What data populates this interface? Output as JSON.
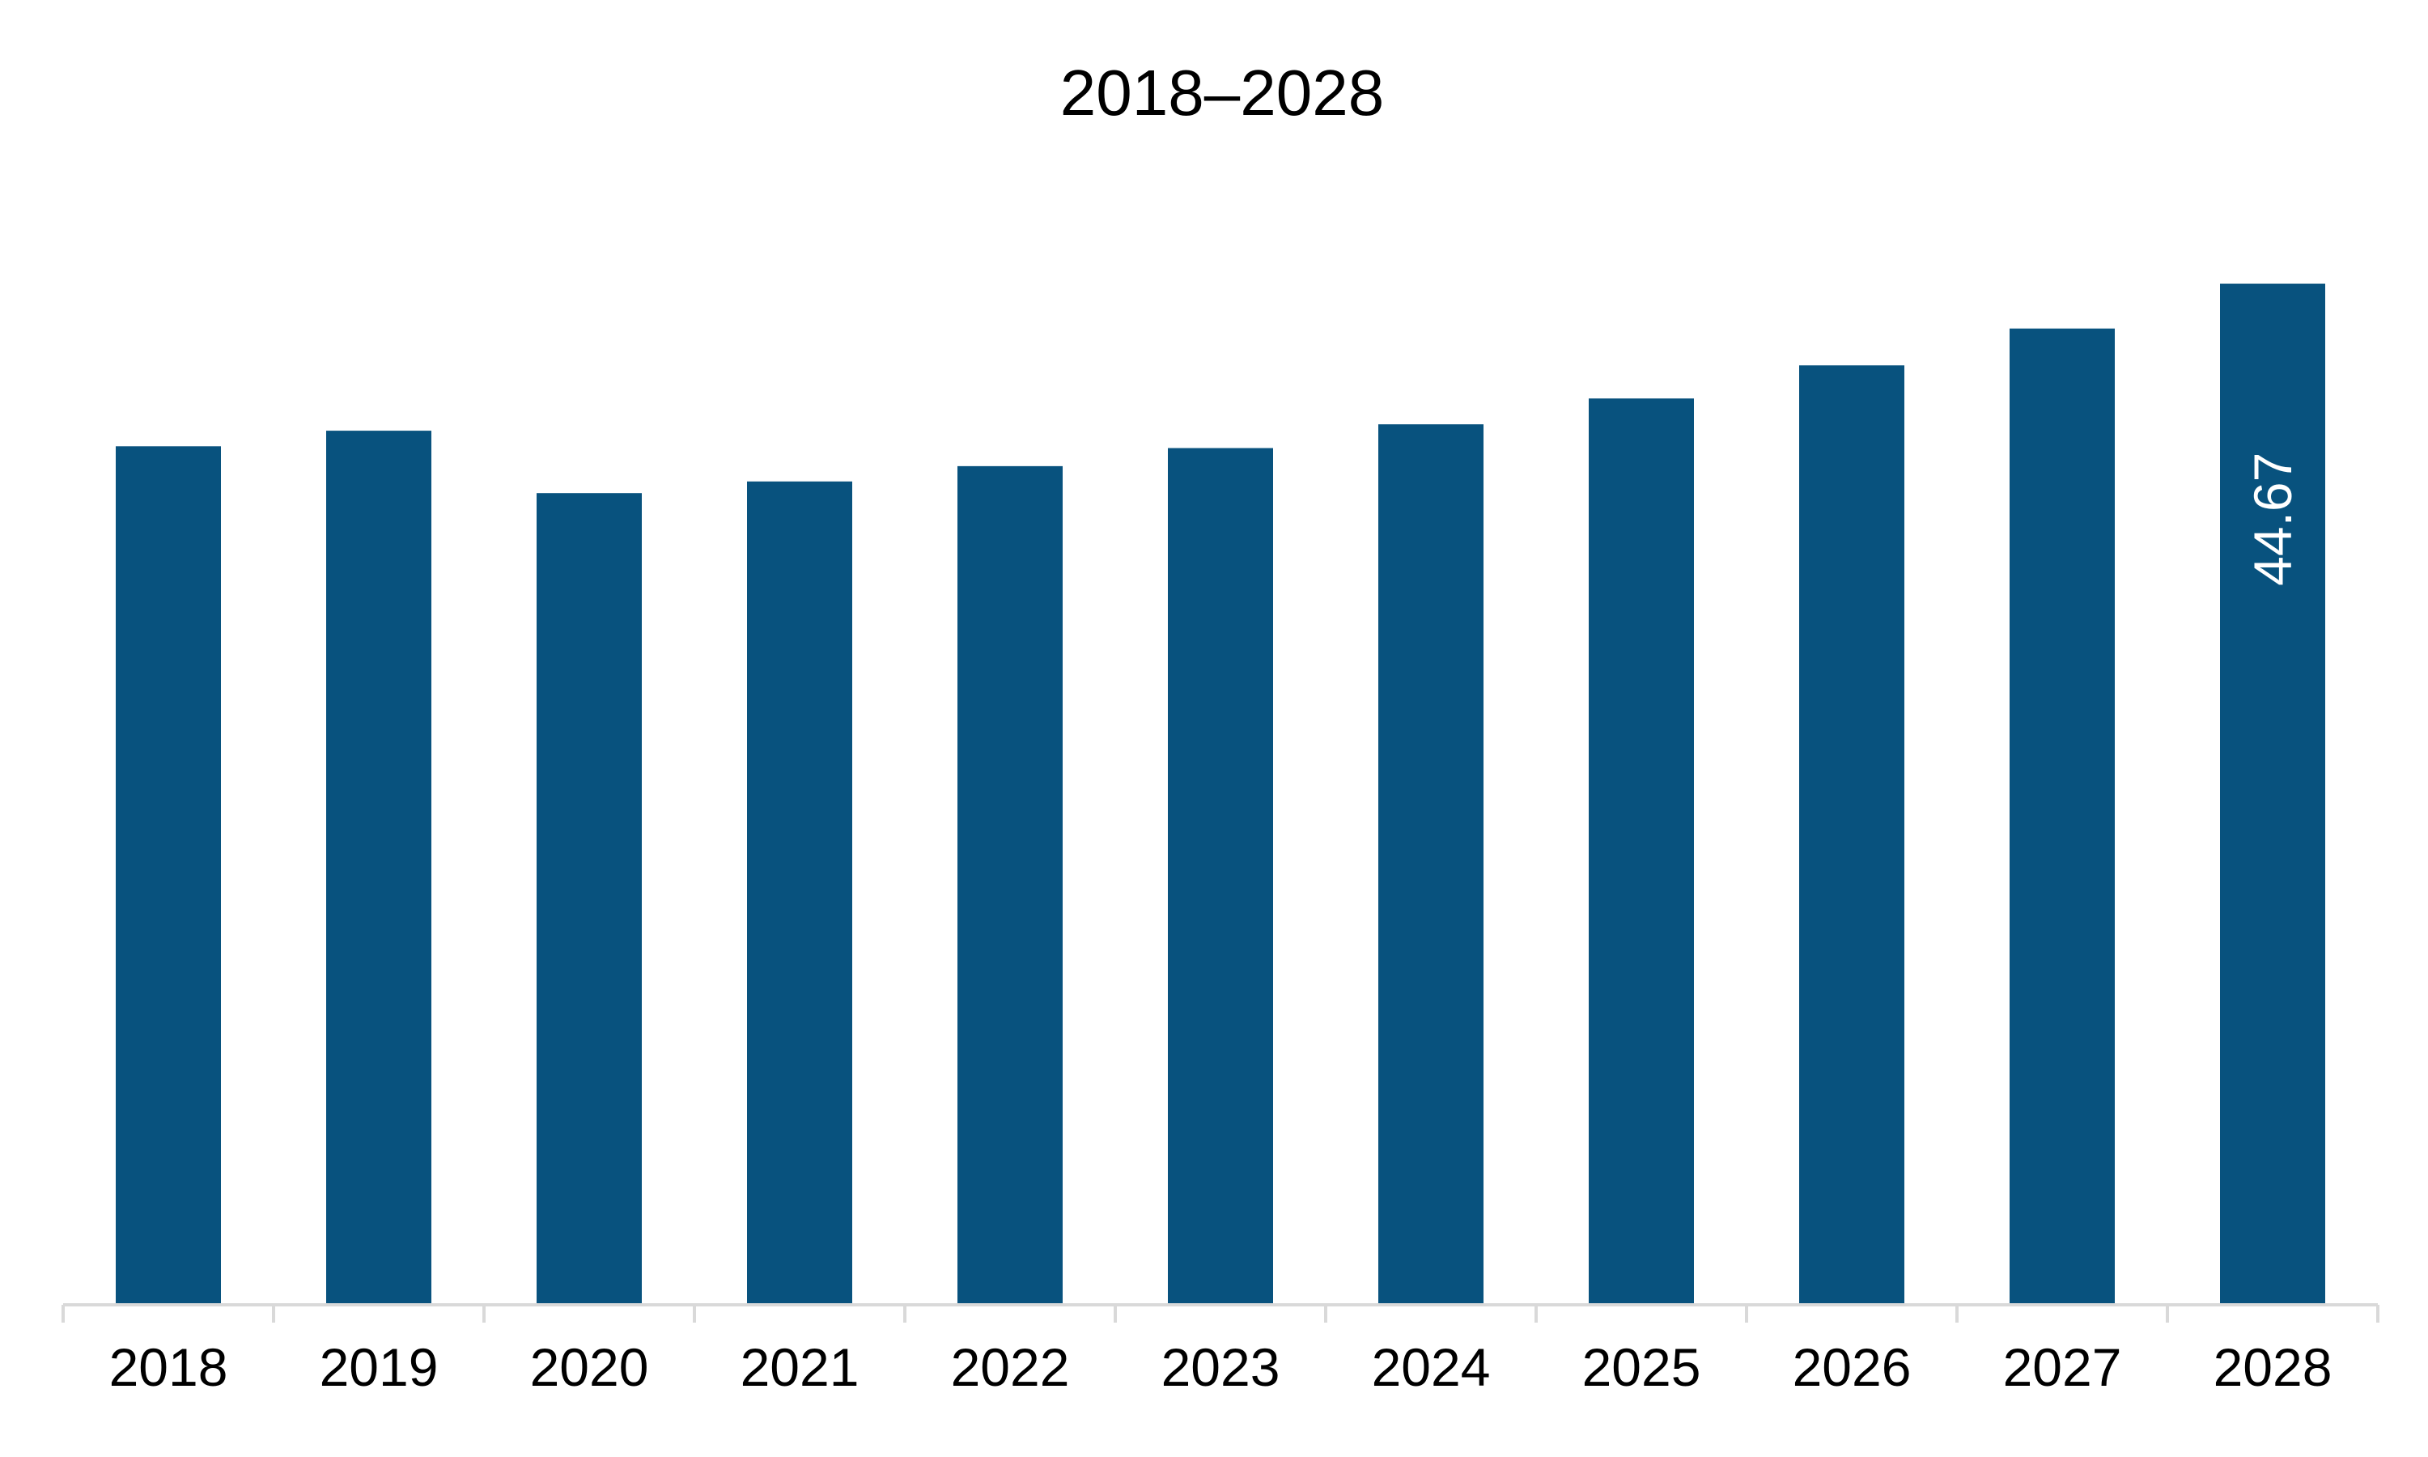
{
  "chart_data": {
    "type": "bar",
    "title": "2018–2028",
    "xlabel": "",
    "ylabel": "",
    "categories": [
      "2018",
      "2019",
      "2020",
      "2021",
      "2022",
      "2023",
      "2024",
      "2025",
      "2026",
      "2027",
      "2028"
    ],
    "values": [
      37.56,
      38.24,
      35.51,
      36.02,
      36.69,
      37.48,
      38.52,
      39.65,
      41.1,
      42.71,
      44.67
    ],
    "data_labels": [
      "",
      "",
      "",
      "",
      "",
      "",
      "",
      "",
      "",
      "",
      "44.67"
    ],
    "ylim": [
      0,
      50
    ],
    "grid": false,
    "legend": "none",
    "bar_color": "#08527e",
    "axis_color": "#d9d9d9"
  }
}
